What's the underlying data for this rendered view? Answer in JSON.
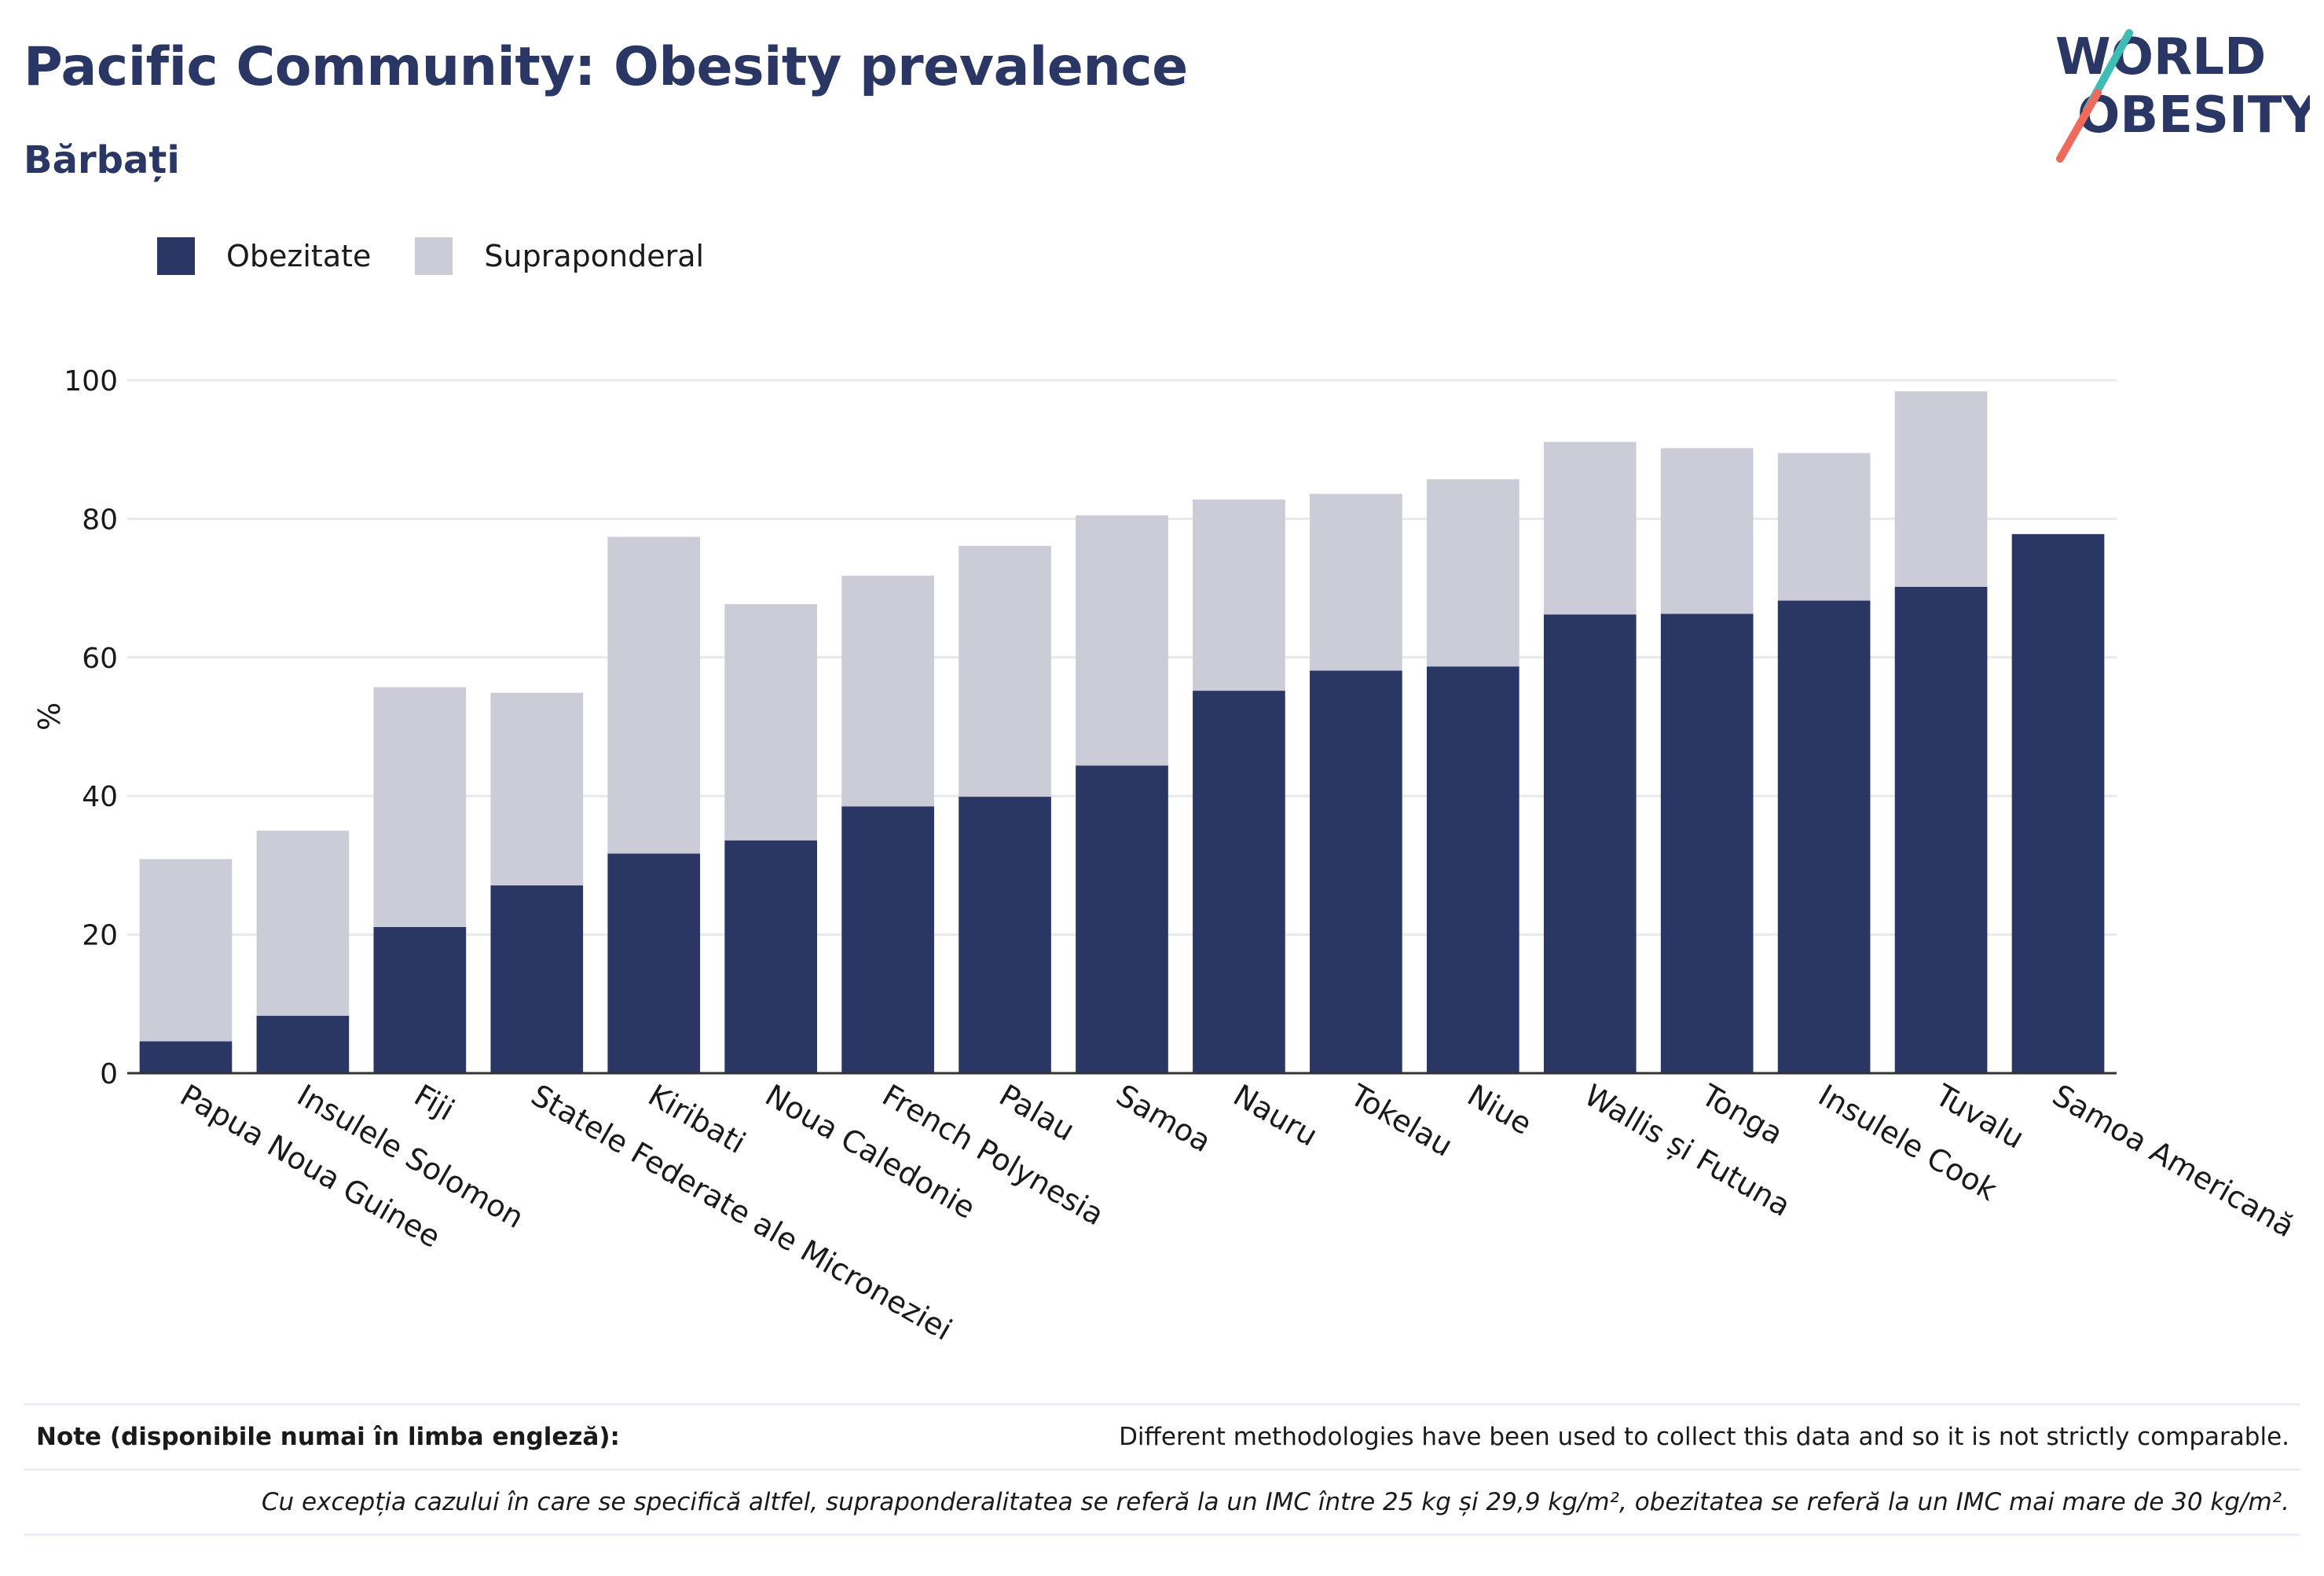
{
  "header": {
    "title": "Pacific Community: Obesity prevalence",
    "subtitle": "Bărbați"
  },
  "logo": {
    "line1": "WORLD",
    "line2": "OBESITY"
  },
  "legend": [
    {
      "label": "Obezitate",
      "color": "#2a3764"
    },
    {
      "label": "Supraponderal",
      "color": "#cbccd8"
    }
  ],
  "chart_data": {
    "type": "bar",
    "stacked": true,
    "ylabel": "%",
    "ylim": [
      0,
      100
    ],
    "yticks": [
      0,
      20,
      40,
      60,
      80,
      100
    ],
    "grid": true,
    "legend_position": "top-left",
    "categories": [
      "Papua Noua Guinee",
      "Insulele Solomon",
      "Fiji",
      "Statele Federate ale Microneziei",
      "Kiribati",
      "Noua Caledonie",
      "French Polynesia",
      "Palau",
      "Samoa",
      "Nauru",
      "Tokelau",
      "Niue",
      "Wallis și Futuna",
      "Tonga",
      "Insulele Cook",
      "Tuvalu",
      "Samoa Americană"
    ],
    "series": [
      {
        "name": "Obezitate",
        "color": "#2a3764",
        "values": [
          4.6,
          8.3,
          21.1,
          27.1,
          31.7,
          33.6,
          38.5,
          39.9,
          44.4,
          55.2,
          58.1,
          58.7,
          66.2,
          66.3,
          68.2,
          70.2,
          77.8
        ]
      },
      {
        "name": "Supraponderal",
        "color": "#cbccd8",
        "values": [
          26.3,
          26.7,
          34.6,
          27.8,
          45.7,
          34.1,
          33.3,
          36.2,
          36.1,
          27.6,
          25.5,
          27.0,
          24.9,
          23.9,
          21.3,
          28.2,
          0
        ]
      }
    ]
  },
  "notes": {
    "label": "Note (disponibile numai în limba engleză):",
    "text": "Different methodologies have been used to collect this data and so it is not strictly comparable.",
    "definition": "Cu excepția cazului în care se specifică altfel, supraponderalitatea se referă la un IMC între 25 kg și 29,9 kg/m², obezitatea se referă la un IMC mai mare de 30 kg/m²."
  }
}
